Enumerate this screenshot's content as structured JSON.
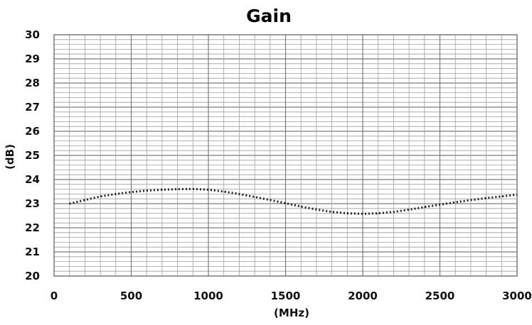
{
  "chart_data": {
    "type": "line",
    "title": "Gain",
    "xlabel": "(MHz)",
    "ylabel": "(dB)",
    "xlim": [
      0,
      3000
    ],
    "ylim": [
      20,
      30
    ],
    "x_ticks": [
      0,
      500,
      1000,
      1500,
      2000,
      2500,
      3000
    ],
    "y_ticks": [
      20,
      21,
      22,
      23,
      24,
      25,
      26,
      27,
      28,
      29,
      30
    ],
    "grid": true,
    "legend": "none",
    "line_style": "dotted",
    "line_color": "#222222",
    "series": [
      {
        "x": [
          100,
          200,
          300,
          400,
          500,
          600,
          700,
          800,
          900,
          1000,
          1100,
          1200,
          1300,
          1400,
          1500,
          1600,
          1700,
          1800,
          1900,
          2000,
          2100,
          2200,
          2300,
          2400,
          2500,
          2600,
          2700,
          2800,
          2900,
          3000
        ],
        "values": [
          23.0,
          23.15,
          23.3,
          23.4,
          23.48,
          23.54,
          23.58,
          23.6,
          23.61,
          23.58,
          23.5,
          23.4,
          23.28,
          23.15,
          23.02,
          22.88,
          22.76,
          22.66,
          22.6,
          22.58,
          22.6,
          22.66,
          22.75,
          22.86,
          22.96,
          23.06,
          23.15,
          23.23,
          23.3,
          23.38
        ]
      }
    ]
  }
}
